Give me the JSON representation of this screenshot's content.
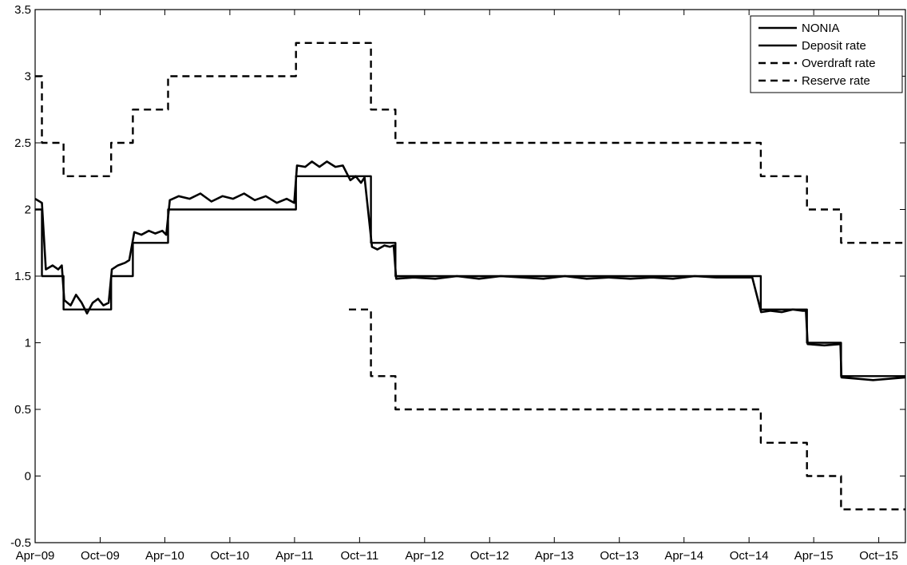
{
  "chart_data": {
    "type": "line",
    "title": "",
    "xlabel": "",
    "ylabel": "",
    "xlim": [
      "2009-04-01",
      "2015-12-15"
    ],
    "ylim": [
      -0.5,
      3.5
    ],
    "grid": false,
    "legend_position": "top-right",
    "x_ticks": [
      {
        "date": "2009-04-01",
        "label": "Apr−09"
      },
      {
        "date": "2009-10-01",
        "label": "Oct−09"
      },
      {
        "date": "2010-04-01",
        "label": "Apr−10"
      },
      {
        "date": "2010-10-01",
        "label": "Oct−10"
      },
      {
        "date": "2011-04-01",
        "label": "Apr−11"
      },
      {
        "date": "2011-10-01",
        "label": "Oct−11"
      },
      {
        "date": "2012-04-01",
        "label": "Apr−12"
      },
      {
        "date": "2012-10-01",
        "label": "Oct−12"
      },
      {
        "date": "2013-04-01",
        "label": "Apr−13"
      },
      {
        "date": "2013-10-01",
        "label": "Oct−13"
      },
      {
        "date": "2014-04-01",
        "label": "Apr−14"
      },
      {
        "date": "2014-10-01",
        "label": "Oct−14"
      },
      {
        "date": "2015-04-01",
        "label": "Apr−15"
      },
      {
        "date": "2015-10-01",
        "label": "Oct−15"
      }
    ],
    "y_ticks": [
      {
        "value": -0.5,
        "label": "-0.5"
      },
      {
        "value": 0,
        "label": "0"
      },
      {
        "value": 0.5,
        "label": "0.5"
      },
      {
        "value": 1,
        "label": "1"
      },
      {
        "value": 1.5,
        "label": "1.5"
      },
      {
        "value": 2,
        "label": "2"
      },
      {
        "value": 2.5,
        "label": "2.5"
      },
      {
        "value": 3,
        "label": "3"
      },
      {
        "value": 3.5,
        "label": "3.5"
      }
    ],
    "series": [
      {
        "name": "NONIA",
        "style": "solid",
        "color": "#000000",
        "points": [
          [
            "2009-04-01",
            2.08
          ],
          [
            "2009-04-20",
            2.05
          ],
          [
            "2009-05-01",
            1.55
          ],
          [
            "2009-05-20",
            1.58
          ],
          [
            "2009-06-05",
            1.55
          ],
          [
            "2009-06-15",
            1.58
          ],
          [
            "2009-06-22",
            1.32
          ],
          [
            "2009-07-10",
            1.28
          ],
          [
            "2009-07-25",
            1.36
          ],
          [
            "2009-08-10",
            1.3
          ],
          [
            "2009-08-25",
            1.22
          ],
          [
            "2009-09-10",
            1.3
          ],
          [
            "2009-09-25",
            1.33
          ],
          [
            "2009-10-10",
            1.28
          ],
          [
            "2009-10-25",
            1.3
          ],
          [
            "2009-11-03",
            1.55
          ],
          [
            "2009-11-20",
            1.58
          ],
          [
            "2009-12-10",
            1.6
          ],
          [
            "2009-12-22",
            1.62
          ],
          [
            "2010-01-05",
            1.83
          ],
          [
            "2010-01-25",
            1.81
          ],
          [
            "2010-02-15",
            1.84
          ],
          [
            "2010-03-05",
            1.82
          ],
          [
            "2010-03-25",
            1.84
          ],
          [
            "2010-04-05",
            1.81
          ],
          [
            "2010-04-15",
            2.07
          ],
          [
            "2010-05-10",
            2.1
          ],
          [
            "2010-06-10",
            2.08
          ],
          [
            "2010-07-10",
            2.12
          ],
          [
            "2010-08-10",
            2.06
          ],
          [
            "2010-09-10",
            2.1
          ],
          [
            "2010-10-10",
            2.08
          ],
          [
            "2010-11-10",
            2.12
          ],
          [
            "2010-12-10",
            2.07
          ],
          [
            "2011-01-10",
            2.1
          ],
          [
            "2011-02-10",
            2.05
          ],
          [
            "2011-03-10",
            2.08
          ],
          [
            "2011-03-31",
            2.05
          ],
          [
            "2011-04-08",
            2.33
          ],
          [
            "2011-05-01",
            2.32
          ],
          [
            "2011-05-20",
            2.36
          ],
          [
            "2011-06-10",
            2.32
          ],
          [
            "2011-07-01",
            2.36
          ],
          [
            "2011-07-25",
            2.32
          ],
          [
            "2011-08-15",
            2.33
          ],
          [
            "2011-09-05",
            2.22
          ],
          [
            "2011-09-20",
            2.25
          ],
          [
            "2011-10-05",
            2.2
          ],
          [
            "2011-10-15",
            2.24
          ],
          [
            "2011-11-05",
            1.72
          ],
          [
            "2011-11-20",
            1.7
          ],
          [
            "2011-12-10",
            1.73
          ],
          [
            "2011-12-25",
            1.72
          ],
          [
            "2012-01-05",
            1.73
          ],
          [
            "2012-01-12",
            1.48
          ],
          [
            "2012-03-01",
            1.49
          ],
          [
            "2012-05-01",
            1.48
          ],
          [
            "2012-07-01",
            1.5
          ],
          [
            "2012-09-01",
            1.48
          ],
          [
            "2012-11-01",
            1.5
          ],
          [
            "2013-01-01",
            1.49
          ],
          [
            "2013-03-01",
            1.48
          ],
          [
            "2013-05-01",
            1.5
          ],
          [
            "2013-07-01",
            1.48
          ],
          [
            "2013-09-01",
            1.49
          ],
          [
            "2013-11-01",
            1.48
          ],
          [
            "2014-01-01",
            1.49
          ],
          [
            "2014-03-01",
            1.48
          ],
          [
            "2014-05-01",
            1.5
          ],
          [
            "2014-07-01",
            1.49
          ],
          [
            "2014-09-01",
            1.49
          ],
          [
            "2014-10-10",
            1.49
          ],
          [
            "2014-11-04",
            1.23
          ],
          [
            "2014-12-01",
            1.24
          ],
          [
            "2015-01-01",
            1.23
          ],
          [
            "2015-02-01",
            1.25
          ],
          [
            "2015-03-01",
            1.24
          ],
          [
            "2015-03-10",
            1.24
          ],
          [
            "2015-03-15",
            0.99
          ],
          [
            "2015-05-01",
            0.98
          ],
          [
            "2015-06-15",
            0.99
          ],
          [
            "2015-06-18",
            0.74
          ],
          [
            "2015-08-01",
            0.73
          ],
          [
            "2015-09-15",
            0.72
          ],
          [
            "2015-11-01",
            0.73
          ],
          [
            "2015-12-15",
            0.74
          ]
        ]
      },
      {
        "name": "Deposit rate",
        "style": "solid",
        "color": "#000000",
        "steps": [
          [
            "2009-04-01",
            2.0
          ],
          [
            "2009-04-20",
            1.5
          ],
          [
            "2009-06-20",
            1.25
          ],
          [
            "2009-11-01",
            1.5
          ],
          [
            "2010-01-01",
            1.75
          ],
          [
            "2010-04-10",
            2.0
          ],
          [
            "2011-04-05",
            2.25
          ],
          [
            "2011-11-02",
            1.75
          ],
          [
            "2012-01-10",
            1.5
          ],
          [
            "2014-11-03",
            1.25
          ],
          [
            "2015-03-13",
            1.0
          ],
          [
            "2015-06-17",
            0.75
          ]
        ],
        "end": "2015-12-15"
      },
      {
        "name": "Overdraft rate",
        "style": "dashed",
        "color": "#000000",
        "steps": [
          [
            "2009-04-01",
            3.0
          ],
          [
            "2009-04-20",
            2.5
          ],
          [
            "2009-06-20",
            2.25
          ],
          [
            "2009-11-01",
            2.5
          ],
          [
            "2010-01-01",
            2.75
          ],
          [
            "2010-04-10",
            3.0
          ],
          [
            "2011-04-05",
            3.25
          ],
          [
            "2011-11-02",
            2.75
          ],
          [
            "2012-01-10",
            2.5
          ],
          [
            "2014-11-03",
            2.25
          ],
          [
            "2015-03-13",
            2.0
          ],
          [
            "2015-06-17",
            1.75
          ]
        ],
        "end": "2015-12-15"
      },
      {
        "name": "Reserve rate",
        "style": "dashed",
        "color": "#000000",
        "steps": [
          [
            "2011-09-01",
            1.25
          ],
          [
            "2011-11-02",
            0.75
          ],
          [
            "2012-01-10",
            0.5
          ],
          [
            "2014-11-03",
            0.25
          ],
          [
            "2015-03-13",
            0.0
          ],
          [
            "2015-06-17",
            -0.25
          ]
        ],
        "end": "2015-12-15"
      }
    ]
  }
}
